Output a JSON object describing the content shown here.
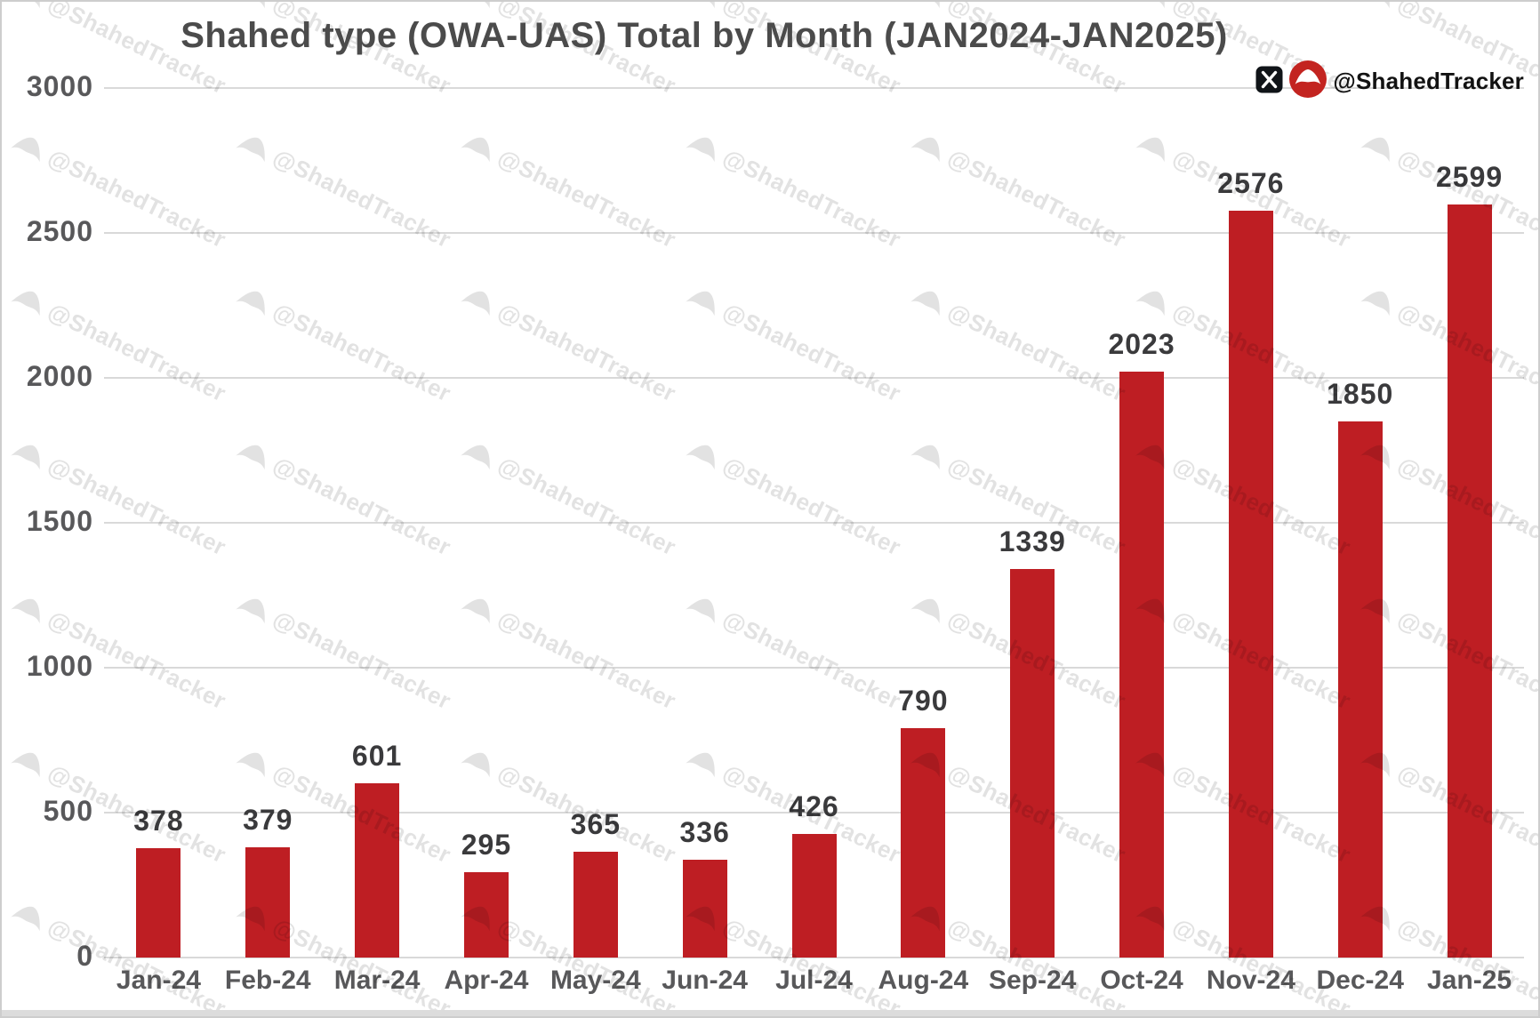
{
  "title": "Shahed type (OWA-UAS) Total by Month (JAN2024-JAN2025)",
  "credit": {
    "handle": "@ShahedTracker",
    "x_icon": "x-logo-icon",
    "logo_icon": "shahedtracker-drone-logo-icon",
    "x_logo_color": "#101418",
    "logo_circle_color": "#c32420"
  },
  "watermark": {
    "text": "@ShahedTracker",
    "icon": "shahed-drone-icon",
    "color": "rgba(0,0,0,0.115)",
    "angle_deg": 26
  },
  "colors": {
    "bar": "#be1e23",
    "grid": "#d9d9d9",
    "axis_label": "#58585a",
    "value_label": "#3a3a3c",
    "title": "#4b4b4b",
    "background": "#ffffff",
    "frame_border": "#cdcdcd"
  },
  "chart_data": {
    "type": "bar",
    "title": "Shahed type (OWA-UAS) Total by Month (JAN2024-JAN2025)",
    "categories": [
      "Jan-24",
      "Feb-24",
      "Mar-24",
      "Apr-24",
      "May-24",
      "Jun-24",
      "Jul-24",
      "Aug-24",
      "Sep-24",
      "Oct-24",
      "Nov-24",
      "Dec-24",
      "Jan-25"
    ],
    "values": [
      378,
      379,
      601,
      295,
      365,
      336,
      426,
      790,
      1339,
      2023,
      2576,
      1850,
      2599
    ],
    "xlabel": "",
    "ylabel": "",
    "ylim": [
      0,
      3000
    ],
    "yticks": [
      0,
      500,
      1000,
      1500,
      2000,
      2500,
      3000
    ],
    "grid": true,
    "legend": false,
    "bar_color": "#be1e23"
  }
}
